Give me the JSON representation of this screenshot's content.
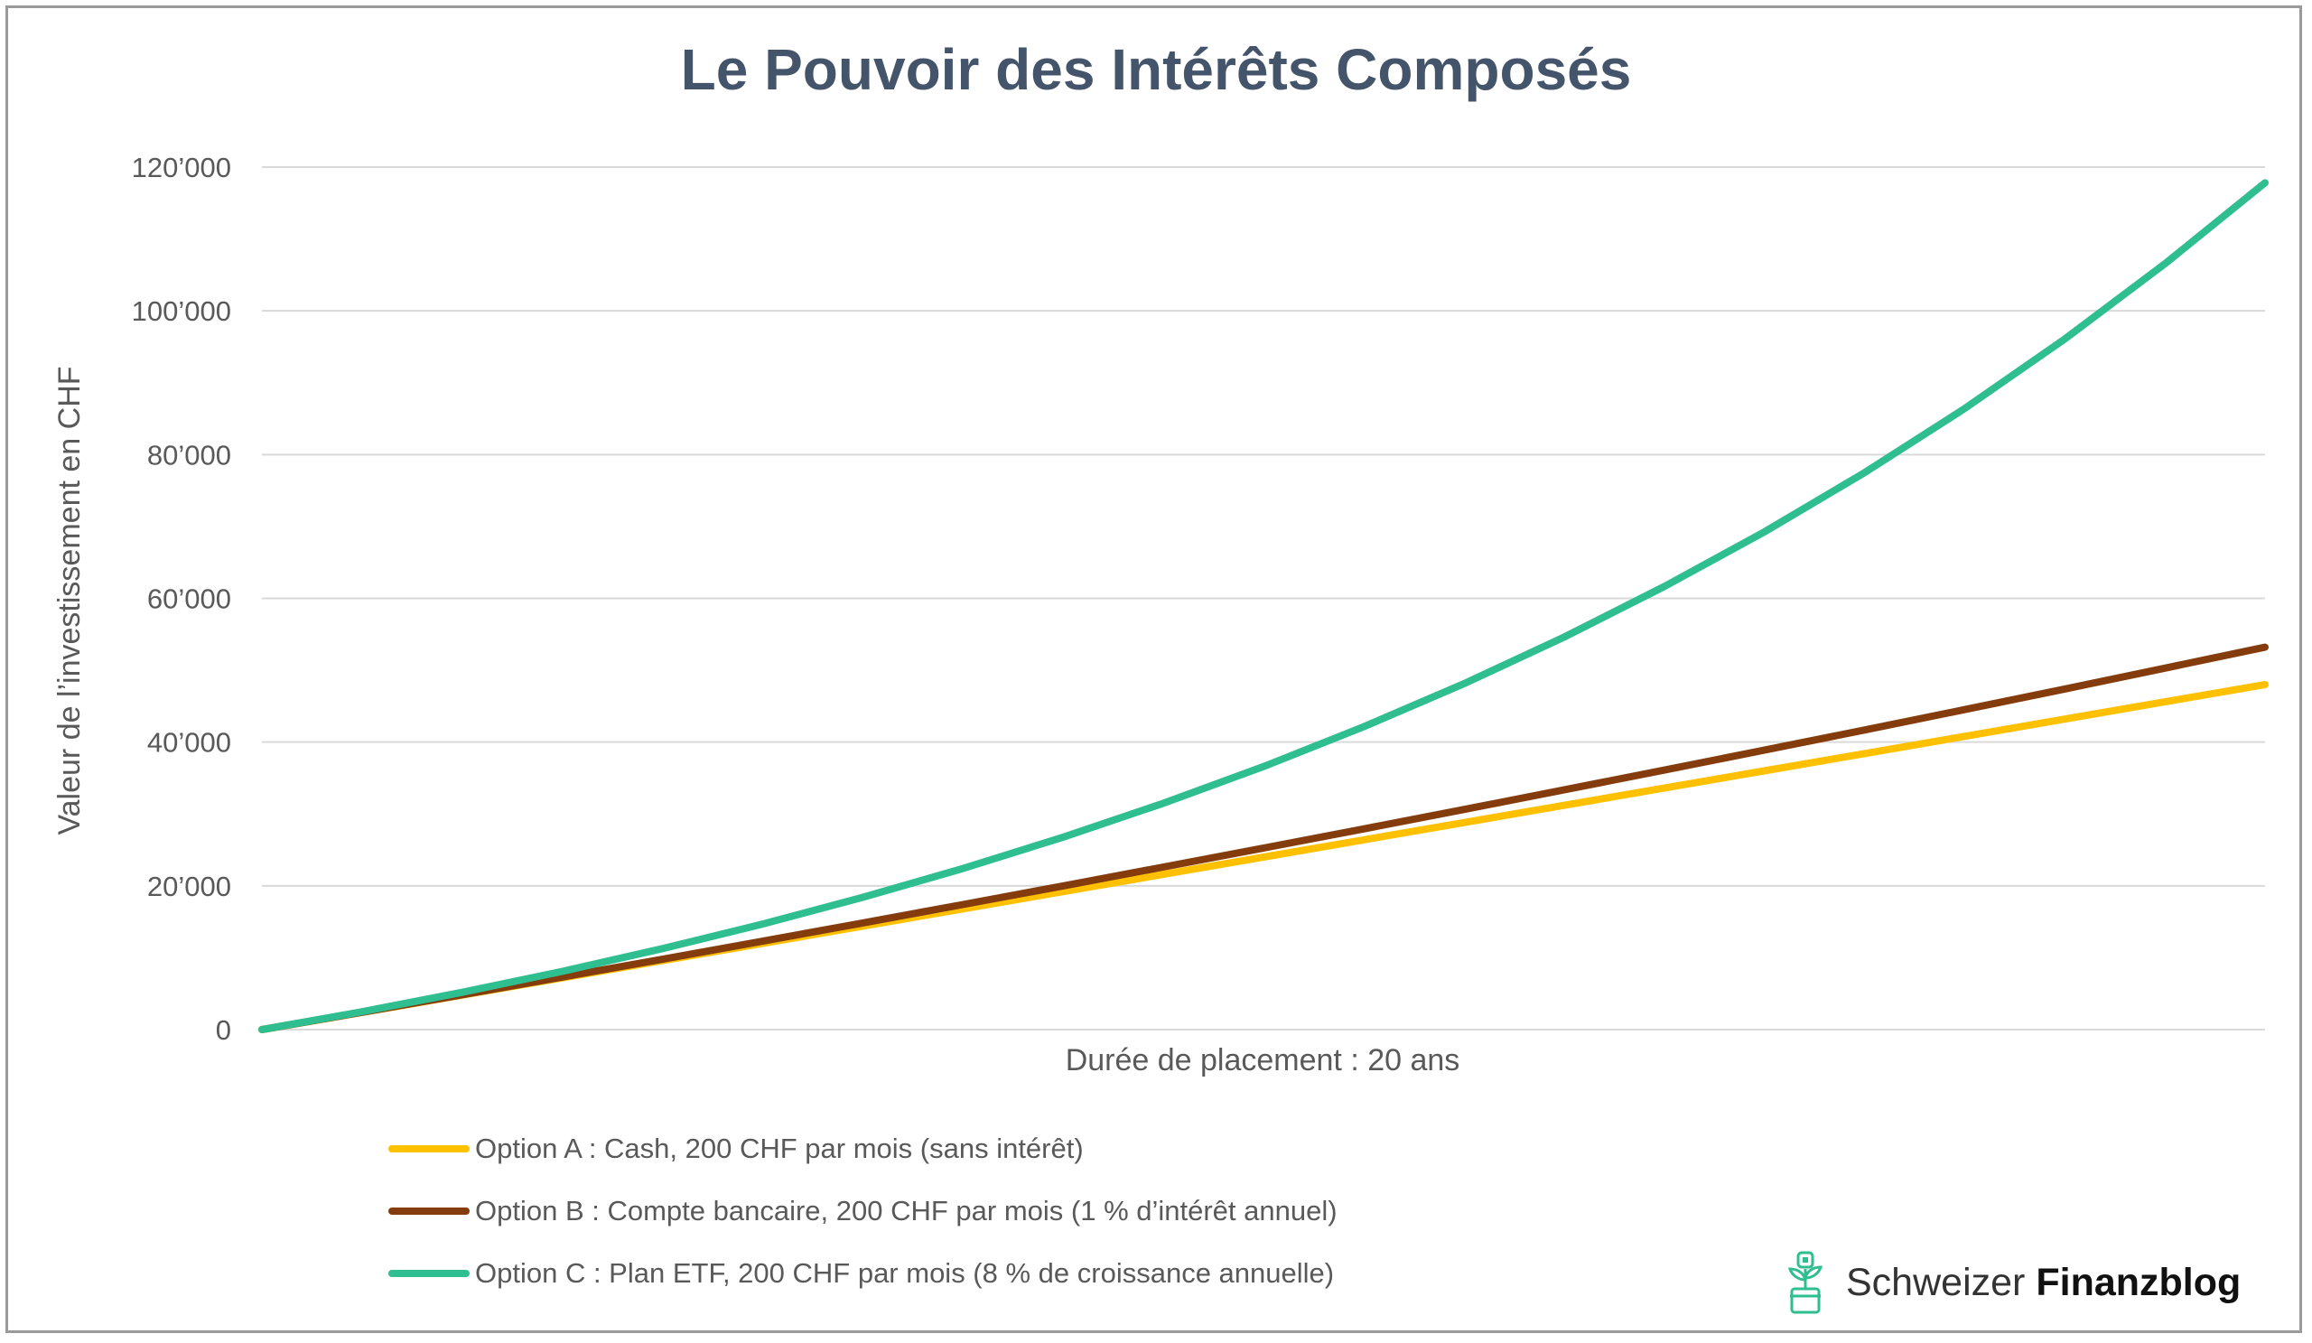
{
  "chart_data": {
    "type": "line",
    "title": "Le Pouvoir des Intérêts Composés",
    "xlabel": "Durée de placement : 20 ans",
    "ylabel": "Valeur de l’investissement en CHF",
    "x": [
      0,
      1,
      2,
      3,
      4,
      5,
      6,
      7,
      8,
      9,
      10,
      11,
      12,
      13,
      14,
      15,
      16,
      17,
      18,
      19,
      20
    ],
    "xlim": [
      0,
      20
    ],
    "ylim": [
      0,
      120000
    ],
    "y_ticks": [
      0,
      20000,
      40000,
      60000,
      80000,
      100000,
      120000
    ],
    "y_tick_labels": [
      "0",
      "20’000",
      "40’000",
      "60’000",
      "80’000",
      "100’000",
      "120’000"
    ],
    "grid": true,
    "legend_position": "bottom-left",
    "series": [
      {
        "name": "Option A : Cash, 200 CHF par mois (sans intérêt)",
        "color": "#ffc000",
        "values": [
          0,
          2400,
          4800,
          7200,
          9600,
          12000,
          14400,
          16800,
          19200,
          21600,
          24000,
          26400,
          28800,
          31200,
          33600,
          36000,
          38400,
          40800,
          43200,
          45600,
          48000
        ]
      },
      {
        "name": "Option B : Compte bancaire, 200 CHF par mois (1 % d’intérêt annuel)",
        "color": "#843c0c",
        "values": [
          0,
          2411,
          4847,
          7308,
          9794,
          12306,
          14843,
          17407,
          19996,
          22612,
          25254,
          27924,
          30621,
          33345,
          36097,
          38877,
          41685,
          44522,
          47388,
          50283,
          53207
        ]
      },
      {
        "name": "Option C : Plan ETF, 200 CHF par mois (8 % de croissance annuelle)",
        "color": "#2fbe8f",
        "values": [
          0,
          2489,
          5185,
          8105,
          11268,
          14694,
          18404,
          22423,
          26775,
          31490,
          36595,
          42126,
          48115,
          54603,
          61629,
          69238,
          77480,
          86405,
          96072,
          106542,
          117818
        ]
      }
    ]
  },
  "branding": {
    "name_regular": "Schweizer",
    "name_bold": "Finanzblog",
    "icon": "plant-pot-icon"
  },
  "colors": {
    "title": "#44546a",
    "axis_text": "#595959",
    "grid": "#d9d9d9",
    "brand_icon": "#2fbe8f"
  }
}
